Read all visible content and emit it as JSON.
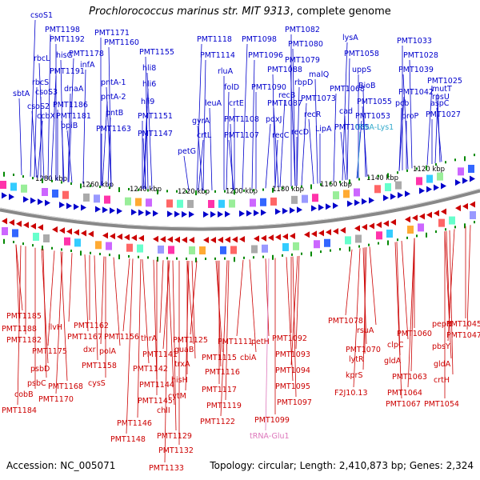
{
  "title": {
    "organism": "Prochlorococcus marinus str. MIT 9313",
    "suffix": ", complete genome"
  },
  "footer": {
    "accession": "Accession: NC_005071",
    "summary": "Topology: circular; Length: 2,410,873 bp; Genes: 2,324"
  },
  "colors": {
    "forward": "#0000cc",
    "reverse": "#cc0000",
    "trna_forward": "#33aacc",
    "trna_reverse": "#dd77bb",
    "backbone": "#888888",
    "tick": "#008800"
  },
  "kbp_ticks": [
    "1280 kbp",
    "1260 kbp",
    "1240 kbp",
    "1220 kbp",
    "1200 kbp",
    "1180 kbp",
    "1160 kbp",
    "1140 kbp",
    "1120 kbp"
  ],
  "top_labels": [
    "csoS1",
    "PMT1198",
    "PMT1192",
    "hisG",
    "rbcL",
    "PMT1191",
    "rbcS",
    "csoS3",
    "sbtA",
    "csoS2",
    "ccbX",
    "dnaA",
    "PMT1186",
    "PMT1181",
    "ppiB",
    "PMT1178",
    "infA",
    "PMT1171",
    "PMT1160",
    "pntA-1",
    "pntA-2",
    "pntB",
    "PMT1163",
    "PMT1155",
    "hli8",
    "hli6",
    "hli9",
    "PMT1151",
    "PMT1147",
    "petG",
    "PMT1118",
    "PMT1114",
    "rluA",
    "leuA",
    "gyrA",
    "crtL",
    "folD",
    "crtE",
    "PMT1108",
    "PMT1107",
    "PMT1098",
    "PMT1096",
    "PMT1090",
    "PMT1088",
    "PMT1087",
    "pdxJ",
    "recC",
    "PMT1082",
    "PMT1080",
    "PMT1079",
    "recB",
    "rbpD",
    "recD",
    "malQ",
    "recR",
    "PMT1073",
    "PMT1068",
    "LipA",
    "cad",
    "PMT1065",
    "lysA",
    "PMT1058",
    "uppS",
    "BioB",
    "PMT1055",
    "PMT1053",
    "tRNA-Lys1",
    "PMT1033",
    "PMT1028",
    "PMT1039",
    "PMT1042",
    "pcb",
    "proP",
    "mutT",
    "aspC",
    "PMT1025",
    "rpsU",
    "PMT1027"
  ],
  "bottom_labels": [
    "PMT1185",
    "PMT1188",
    "PMT1182",
    "ilvH",
    "PMT1175",
    "psbD",
    "psbC",
    "cobB",
    "PMT1184",
    "PMT1170",
    "PMT1168",
    "PMT1167",
    "PMT1162",
    "dxr",
    "PMT1156",
    "polA",
    "PMT1158",
    "cysS",
    "thrA",
    "PMT1141",
    "PMT1142",
    "PMT1144",
    "PMT1145",
    "PMT1146",
    "PMT1148",
    "chlI",
    "PMT1129",
    "PMT1132",
    "PMT1133",
    "PMT1125",
    "guaB",
    "trxA",
    "hisH",
    "cytM",
    "PMT1111",
    "PMT1115",
    "PMT1116",
    "PMT1117",
    "PMT1119",
    "PMT1122",
    "cbiA",
    "petH",
    "PMT1092",
    "PMT1093",
    "PMT1094",
    "PMT1095",
    "PMT1097",
    "PMT1099",
    "tRNA-Glu1",
    "PMT1078",
    "rsuA",
    "PMT1070",
    "lytR",
    "kprS",
    "F2J10.13",
    "clpC",
    "gldA",
    "PMT1060",
    "PMT1063",
    "PMT1064",
    "PMT1067",
    "pepN",
    "PMT1045",
    "PMT1047",
    "pbsY",
    "gldA",
    "crtH",
    "PMT1054"
  ]
}
